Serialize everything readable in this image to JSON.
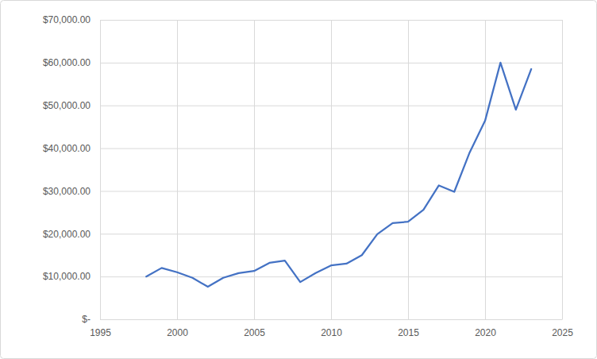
{
  "chart_data": {
    "type": "line",
    "x": [
      1998,
      1999,
      2000,
      2001,
      2002,
      2003,
      2004,
      2005,
      2006,
      2007,
      2008,
      2009,
      2010,
      2011,
      2012,
      2013,
      2014,
      2015,
      2016,
      2017,
      2018,
      2019,
      2020,
      2021,
      2022,
      2023
    ],
    "values": [
      10000,
      12000,
      11000,
      9700,
      7600,
      9700,
      10800,
      11300,
      13200,
      13700,
      8700,
      10800,
      12600,
      13000,
      15000,
      19900,
      22500,
      22800,
      25600,
      31300,
      29800,
      39000,
      46400,
      60000,
      49000,
      58500
    ],
    "color": "#4472c4",
    "xlim": [
      1995,
      2025
    ],
    "xticks": [
      1995,
      2000,
      2005,
      2010,
      2015,
      2020,
      2025
    ],
    "ylim": [
      0,
      70000
    ],
    "yticks": [
      {
        "value": 0,
        "label": "$-"
      },
      {
        "value": 10000,
        "label": "$10,000.00"
      },
      {
        "value": 20000,
        "label": "$20,000.00"
      },
      {
        "value": 30000,
        "label": "$30,000.00"
      },
      {
        "value": 40000,
        "label": "$40,000.00"
      },
      {
        "value": 50000,
        "label": "$50,000.00"
      },
      {
        "value": 60000,
        "label": "$60,000.00"
      },
      {
        "value": 70000,
        "label": "$70,000.00"
      }
    ],
    "grid": true
  }
}
